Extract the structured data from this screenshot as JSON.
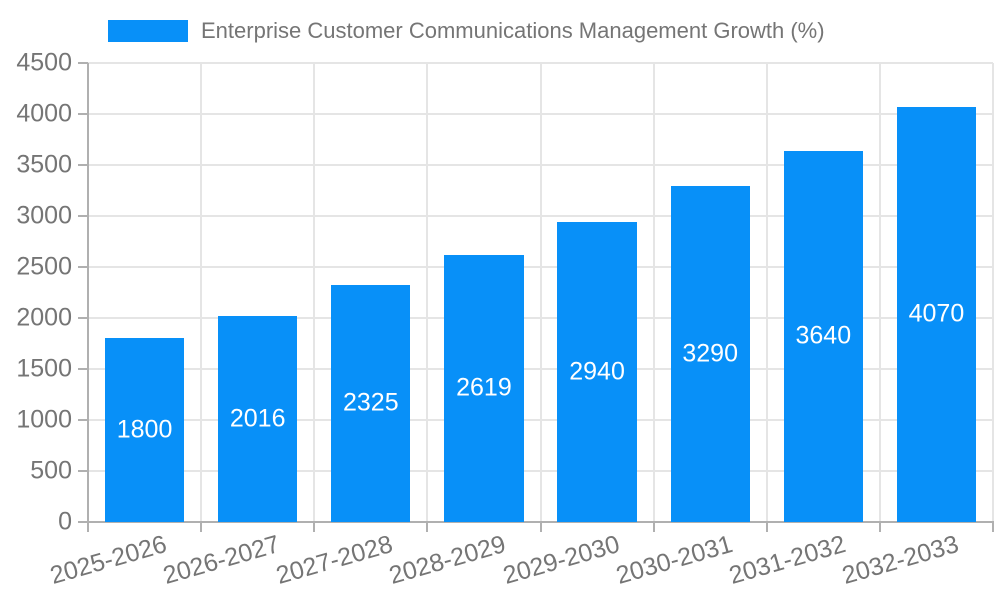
{
  "legend": {
    "label": "Enterprise Customer Communications Management Growth (%)"
  },
  "colors": {
    "bar": "#0890f8",
    "grid": "#e5e5e5",
    "axis": "#b0b0b0",
    "tick_text": "#757575",
    "value_label_text": "#ffffff",
    "background": "#ffffff"
  },
  "chart_data": {
    "type": "bar",
    "title": "",
    "series_name": "Enterprise Customer Communications Management Growth (%)",
    "categories": [
      "2025-2026",
      "2026-2027",
      "2027-2028",
      "2028-2029",
      "2029-2030",
      "2030-2031",
      "2031-2032",
      "2032-2033"
    ],
    "values": [
      1800,
      2016,
      2325,
      2619,
      2940,
      3290,
      3640,
      4070
    ],
    "xlabel": "",
    "ylabel": "",
    "ylim": [
      0,
      4500
    ],
    "ytick_step": 500,
    "ytick_labels": [
      "0",
      "500",
      "1000",
      "1500",
      "2000",
      "2500",
      "3000",
      "3500",
      "4000",
      "4500"
    ],
    "grid": true,
    "legend_position": "top-left",
    "bar_label_position": "center-inside",
    "x_tick_label_rotation_deg": -16
  }
}
